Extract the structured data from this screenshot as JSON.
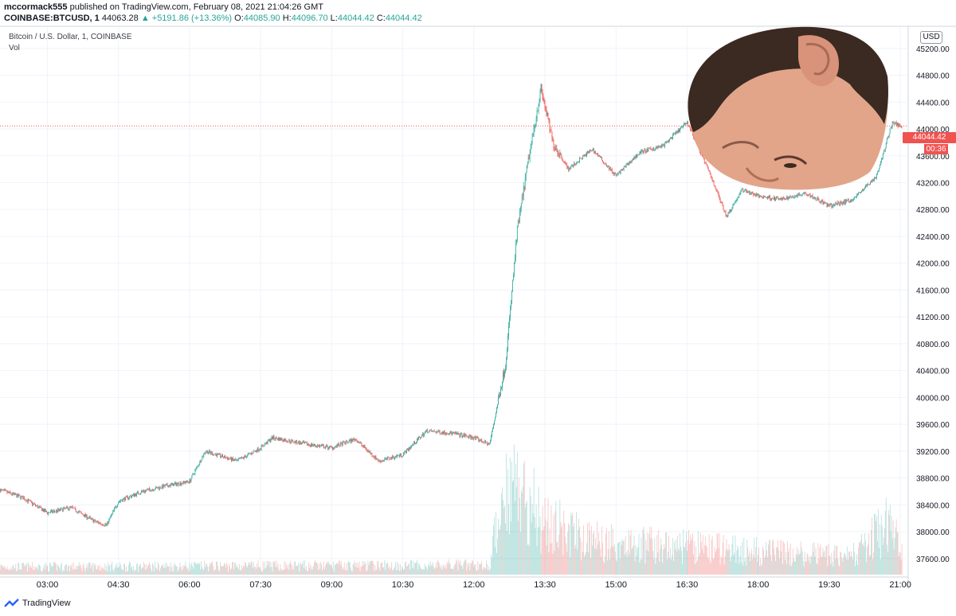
{
  "header": {
    "user": "mccormack555",
    "published": "published on TradingView.com, February 08, 2021 21:04:26 GMT",
    "symbol": "COINBASE:BTCUSD, 1",
    "last": "44063.28",
    "change": "+5191.86 (+13.36%)",
    "o_label": "O:",
    "o": "44085.90",
    "h_label": "H:",
    "h": "44096.70",
    "l_label": "L:",
    "l": "44044.42",
    "c_label": "C:",
    "c": "44044.42"
  },
  "legend": {
    "title": "Bitcoin / U.S. Dollar, 1, COINBASE",
    "vol": "Vol"
  },
  "price_axis": {
    "currency": "USD",
    "current_price": "44044.42",
    "countdown": "00:36"
  },
  "footer": {
    "brand": "TradingView"
  },
  "colors": {
    "up": "#26a69a",
    "down": "#ef5350",
    "grid": "#f0f3fa",
    "axis_text": "#131722"
  },
  "chart_data": {
    "type": "candlestick",
    "interval": "1 minute",
    "x_ticks": [
      "03:00",
      "04:30",
      "06:00",
      "07:30",
      "09:00",
      "10:30",
      "12:00",
      "13:30",
      "15:00",
      "16:30",
      "18:00",
      "19:30",
      "21:00"
    ],
    "y_ticks": [
      37600,
      38000,
      38400,
      38800,
      39200,
      39600,
      40000,
      40400,
      40800,
      41200,
      41600,
      42000,
      42400,
      42800,
      43200,
      43600,
      44000,
      44400,
      44800,
      45200
    ],
    "ylim": [
      37360,
      45530
    ],
    "price_line": 44044.42,
    "approx_close_path": [
      {
        "t": "02:00",
        "p": 38620
      },
      {
        "t": "02:30",
        "p": 38500
      },
      {
        "t": "03:00",
        "p": 38280
      },
      {
        "t": "03:30",
        "p": 38360
      },
      {
        "t": "04:00",
        "p": 38150
      },
      {
        "t": "04:15",
        "p": 38100
      },
      {
        "t": "04:30",
        "p": 38450
      },
      {
        "t": "05:00",
        "p": 38600
      },
      {
        "t": "05:30",
        "p": 38680
      },
      {
        "t": "06:00",
        "p": 38750
      },
      {
        "t": "06:20",
        "p": 39200
      },
      {
        "t": "07:00",
        "p": 39050
      },
      {
        "t": "07:30",
        "p": 39250
      },
      {
        "t": "07:45",
        "p": 39400
      },
      {
        "t": "08:30",
        "p": 39300
      },
      {
        "t": "09:00",
        "p": 39250
      },
      {
        "t": "09:30",
        "p": 39380
      },
      {
        "t": "10:00",
        "p": 39050
      },
      {
        "t": "10:30",
        "p": 39150
      },
      {
        "t": "11:00",
        "p": 39500
      },
      {
        "t": "11:30",
        "p": 39470
      },
      {
        "t": "12:00",
        "p": 39400
      },
      {
        "t": "12:20",
        "p": 39300
      },
      {
        "t": "12:40",
        "p": 40500
      },
      {
        "t": "12:55",
        "p": 42500
      },
      {
        "t": "13:10",
        "p": 43600
      },
      {
        "t": "13:25",
        "p": 44600
      },
      {
        "t": "13:40",
        "p": 43800
      },
      {
        "t": "14:00",
        "p": 43400
      },
      {
        "t": "14:30",
        "p": 43700
      },
      {
        "t": "15:00",
        "p": 43300
      },
      {
        "t": "15:30",
        "p": 43650
      },
      {
        "t": "16:00",
        "p": 43750
      },
      {
        "t": "16:30",
        "p": 44100
      },
      {
        "t": "17:00",
        "p": 43300
      },
      {
        "t": "17:20",
        "p": 42700
      },
      {
        "t": "17:40",
        "p": 43100
      },
      {
        "t": "18:00",
        "p": 43000
      },
      {
        "t": "18:30",
        "p": 42950
      },
      {
        "t": "19:00",
        "p": 43050
      },
      {
        "t": "19:30",
        "p": 42850
      },
      {
        "t": "20:00",
        "p": 42950
      },
      {
        "t": "20:30",
        "p": 43300
      },
      {
        "t": "20:50",
        "p": 44100
      },
      {
        "t": "21:00",
        "p": 44044
      }
    ],
    "volume_profile": [
      {
        "t": "02:00",
        "v": 0.08
      },
      {
        "t": "12:20",
        "v": 0.1
      },
      {
        "t": "12:40",
        "v": 1.0
      },
      {
        "t": "13:00",
        "v": 0.9
      },
      {
        "t": "13:30",
        "v": 0.55
      },
      {
        "t": "14:30",
        "v": 0.35
      },
      {
        "t": "16:00",
        "v": 0.3
      },
      {
        "t": "17:00",
        "v": 0.28
      },
      {
        "t": "18:30",
        "v": 0.22
      },
      {
        "t": "20:00",
        "v": 0.2
      },
      {
        "t": "20:50",
        "v": 0.55
      },
      {
        "t": "21:00",
        "v": 0.2
      }
    ]
  }
}
